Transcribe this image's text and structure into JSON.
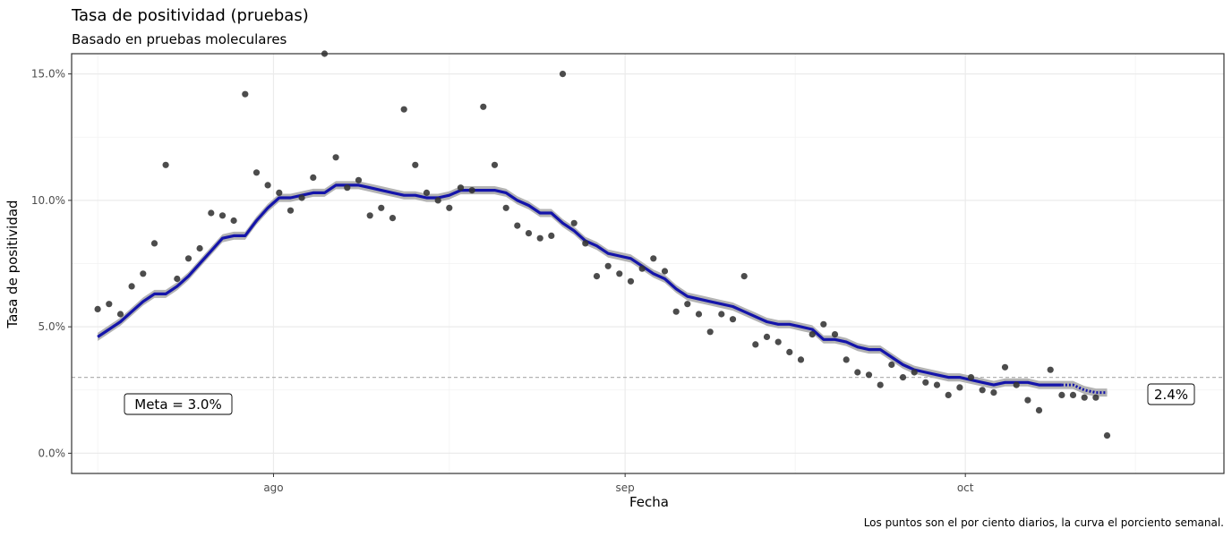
{
  "chart_data": {
    "type": "scatter",
    "title": "Tasa de positividad (pruebas)",
    "subtitle": "Basado en pruebas moleculares",
    "xlabel": "Fecha",
    "ylabel": "Tasa de positividad",
    "caption": "Los puntos son el por ciento diarios, la curva el porciento semanal.",
    "x_ticks": [
      {
        "day": 31,
        "label": "ago"
      },
      {
        "day": 62,
        "label": "sep"
      },
      {
        "day": 92,
        "label": "oct"
      }
    ],
    "y_ticks": [
      {
        "value": 0.0,
        "label": "0.0%"
      },
      {
        "value": 0.05,
        "label": "5.0%"
      },
      {
        "value": 0.1,
        "label": "10.0%"
      },
      {
        "value": 0.15,
        "label": "15.0%"
      }
    ],
    "xlim": [
      13.2,
      114.8
    ],
    "ylim": [
      -0.008,
      0.158
    ],
    "grid": true,
    "goal": {
      "value": 0.03,
      "label": "Meta = 3.0%"
    },
    "end_label": "2.4%",
    "colors": {
      "points": "#333333",
      "curve": "#1414aa",
      "band": "#b3b3b3",
      "goal": "#b3b3b3"
    },
    "daily_points": {
      "name": "por ciento diarios",
      "points": [
        [
          15.5,
          0.057
        ],
        [
          16.5,
          0.059
        ],
        [
          17.5,
          0.055
        ],
        [
          18.5,
          0.066
        ],
        [
          19.5,
          0.071
        ],
        [
          20.5,
          0.083
        ],
        [
          21.5,
          0.114
        ],
        [
          22.5,
          0.069
        ],
        [
          23.5,
          0.077
        ],
        [
          24.5,
          0.081
        ],
        [
          25.5,
          0.095
        ],
        [
          26.5,
          0.094
        ],
        [
          27.5,
          0.092
        ],
        [
          28.5,
          0.142
        ],
        [
          29.5,
          0.111
        ],
        [
          30.5,
          0.106
        ],
        [
          31.5,
          0.103
        ],
        [
          32.5,
          0.096
        ],
        [
          33.5,
          0.101
        ],
        [
          34.5,
          0.109
        ],
        [
          35.5,
          0.158
        ],
        [
          36.5,
          0.117
        ],
        [
          37.5,
          0.105
        ],
        [
          38.5,
          0.108
        ],
        [
          39.5,
          0.094
        ],
        [
          40.5,
          0.097
        ],
        [
          41.5,
          0.093
        ],
        [
          42.5,
          0.136
        ],
        [
          43.5,
          0.114
        ],
        [
          44.5,
          0.103
        ],
        [
          45.5,
          0.1
        ],
        [
          46.5,
          0.097
        ],
        [
          47.5,
          0.105
        ],
        [
          48.5,
          0.104
        ],
        [
          49.5,
          0.137
        ],
        [
          50.5,
          0.114
        ],
        [
          51.5,
          0.097
        ],
        [
          52.5,
          0.09
        ],
        [
          53.5,
          0.087
        ],
        [
          54.5,
          0.085
        ],
        [
          55.5,
          0.086
        ],
        [
          56.5,
          0.15
        ],
        [
          57.5,
          0.091
        ],
        [
          58.5,
          0.083
        ],
        [
          59.5,
          0.07
        ],
        [
          60.5,
          0.074
        ],
        [
          61.5,
          0.071
        ],
        [
          62.5,
          0.068
        ],
        [
          63.5,
          0.073
        ],
        [
          64.5,
          0.077
        ],
        [
          65.5,
          0.072
        ],
        [
          66.5,
          0.056
        ],
        [
          67.5,
          0.059
        ],
        [
          68.5,
          0.055
        ],
        [
          69.5,
          0.048
        ],
        [
          70.5,
          0.055
        ],
        [
          71.5,
          0.053
        ],
        [
          72.5,
          0.07
        ],
        [
          73.5,
          0.043
        ],
        [
          74.5,
          0.046
        ],
        [
          75.5,
          0.044
        ],
        [
          76.5,
          0.04
        ],
        [
          77.5,
          0.037
        ],
        [
          78.5,
          0.047
        ],
        [
          79.5,
          0.051
        ],
        [
          80.5,
          0.047
        ],
        [
          81.5,
          0.037
        ],
        [
          82.5,
          0.032
        ],
        [
          83.5,
          0.031
        ],
        [
          84.5,
          0.027
        ],
        [
          85.5,
          0.035
        ],
        [
          86.5,
          0.03
        ],
        [
          87.5,
          0.032
        ],
        [
          88.5,
          0.028
        ],
        [
          89.5,
          0.027
        ],
        [
          90.5,
          0.023
        ],
        [
          91.5,
          0.026
        ],
        [
          92.5,
          0.03
        ],
        [
          93.5,
          0.025
        ],
        [
          94.5,
          0.024
        ],
        [
          95.5,
          0.034
        ],
        [
          96.5,
          0.027
        ],
        [
          97.5,
          0.021
        ],
        [
          98.5,
          0.017
        ],
        [
          99.5,
          0.033
        ],
        [
          100.5,
          0.023
        ],
        [
          101.5,
          0.023
        ],
        [
          102.5,
          0.022
        ],
        [
          103.5,
          0.022
        ],
        [
          104.5,
          0.007
        ]
      ]
    },
    "weekly_curve": {
      "name": "porciento semanal",
      "solid": [
        [
          15.5,
          0.046
        ],
        [
          16.5,
          0.049
        ],
        [
          17.5,
          0.052
        ],
        [
          18.5,
          0.056
        ],
        [
          19.5,
          0.06
        ],
        [
          20.5,
          0.063
        ],
        [
          21.5,
          0.063
        ],
        [
          22.5,
          0.066
        ],
        [
          23.5,
          0.07
        ],
        [
          24.5,
          0.075
        ],
        [
          25.5,
          0.08
        ],
        [
          26.5,
          0.085
        ],
        [
          27.5,
          0.086
        ],
        [
          28.5,
          0.086
        ],
        [
          29.5,
          0.092
        ],
        [
          30.5,
          0.097
        ],
        [
          31.5,
          0.101
        ],
        [
          32.5,
          0.101
        ],
        [
          33.5,
          0.102
        ],
        [
          34.5,
          0.103
        ],
        [
          35.5,
          0.103
        ],
        [
          36.5,
          0.106
        ],
        [
          37.5,
          0.106
        ],
        [
          38.5,
          0.106
        ],
        [
          39.5,
          0.105
        ],
        [
          40.5,
          0.104
        ],
        [
          41.5,
          0.103
        ],
        [
          42.5,
          0.102
        ],
        [
          43.5,
          0.102
        ],
        [
          44.5,
          0.101
        ],
        [
          45.5,
          0.101
        ],
        [
          46.5,
          0.102
        ],
        [
          47.5,
          0.104
        ],
        [
          48.5,
          0.104
        ],
        [
          49.5,
          0.104
        ],
        [
          50.5,
          0.104
        ],
        [
          51.5,
          0.103
        ],
        [
          52.5,
          0.1
        ],
        [
          53.5,
          0.098
        ],
        [
          54.5,
          0.095
        ],
        [
          55.5,
          0.095
        ],
        [
          56.5,
          0.091
        ],
        [
          57.5,
          0.088
        ],
        [
          58.5,
          0.084
        ],
        [
          59.5,
          0.082
        ],
        [
          60.5,
          0.079
        ],
        [
          61.5,
          0.078
        ],
        [
          62.5,
          0.077
        ],
        [
          63.5,
          0.074
        ],
        [
          64.5,
          0.071
        ],
        [
          65.5,
          0.069
        ],
        [
          66.5,
          0.065
        ],
        [
          67.5,
          0.062
        ],
        [
          68.5,
          0.061
        ],
        [
          69.5,
          0.06
        ],
        [
          70.5,
          0.059
        ],
        [
          71.5,
          0.058
        ],
        [
          72.5,
          0.056
        ],
        [
          73.5,
          0.054
        ],
        [
          74.5,
          0.052
        ],
        [
          75.5,
          0.051
        ],
        [
          76.5,
          0.051
        ],
        [
          77.5,
          0.05
        ],
        [
          78.5,
          0.049
        ],
        [
          79.5,
          0.045
        ],
        [
          80.5,
          0.045
        ],
        [
          81.5,
          0.044
        ],
        [
          82.5,
          0.042
        ],
        [
          83.5,
          0.041
        ],
        [
          84.5,
          0.041
        ],
        [
          85.5,
          0.038
        ],
        [
          86.5,
          0.035
        ],
        [
          87.5,
          0.033
        ],
        [
          88.5,
          0.032
        ],
        [
          89.5,
          0.031
        ],
        [
          90.5,
          0.03
        ],
        [
          91.5,
          0.03
        ],
        [
          92.5,
          0.029
        ],
        [
          93.5,
          0.028
        ],
        [
          94.5,
          0.027
        ],
        [
          95.5,
          0.028
        ],
        [
          96.5,
          0.028
        ],
        [
          97.5,
          0.028
        ],
        [
          98.5,
          0.027
        ],
        [
          99.5,
          0.027
        ],
        [
          100.5,
          0.027
        ]
      ],
      "dotted": [
        [
          101.5,
          0.027
        ],
        [
          102.5,
          0.025
        ],
        [
          103.5,
          0.024
        ],
        [
          104.5,
          0.024
        ]
      ]
    }
  }
}
